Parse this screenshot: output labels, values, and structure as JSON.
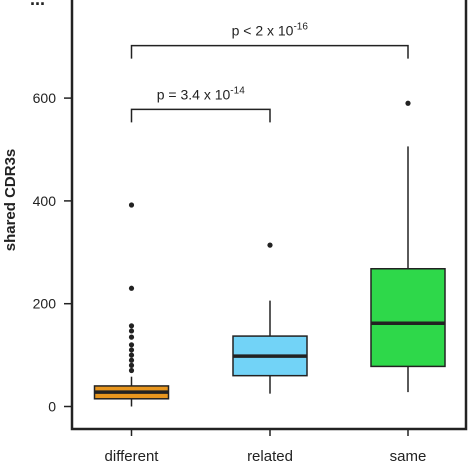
{
  "chart_data": {
    "type": "boxplot",
    "panel_label": "...",
    "ylabel": "shared CDR3s",
    "yticks": [
      0,
      200,
      400,
      600
    ],
    "ylim": [
      -40,
      800
    ],
    "categories": [
      "different",
      "related",
      "same"
    ],
    "boxes": [
      {
        "name": "different",
        "color": "#e8961e",
        "min": 0,
        "q1": 15,
        "median": 28,
        "q3": 40,
        "max": 58,
        "outliers": [
          70,
          80,
          90,
          100,
          110,
          120,
          135,
          147,
          157,
          230,
          392
        ]
      },
      {
        "name": "related",
        "color": "#72d3f7",
        "min": 25,
        "q1": 60,
        "median": 98,
        "q3": 137,
        "max": 206,
        "outliers": [
          314
        ]
      },
      {
        "name": "same",
        "color": "#2ed84a",
        "min": 28,
        "q1": 78,
        "median": 162,
        "q3": 268,
        "max": 506,
        "outliers": [
          590
        ]
      }
    ],
    "annotations": [
      {
        "from": "different",
        "to": "related",
        "y": 578,
        "label_prefix": "p = 3.4 x 10",
        "label_exp": "-14"
      },
      {
        "from": "different",
        "to": "same",
        "y": 702,
        "label_prefix": "p < 2 x 10",
        "label_exp": "-16"
      }
    ]
  }
}
